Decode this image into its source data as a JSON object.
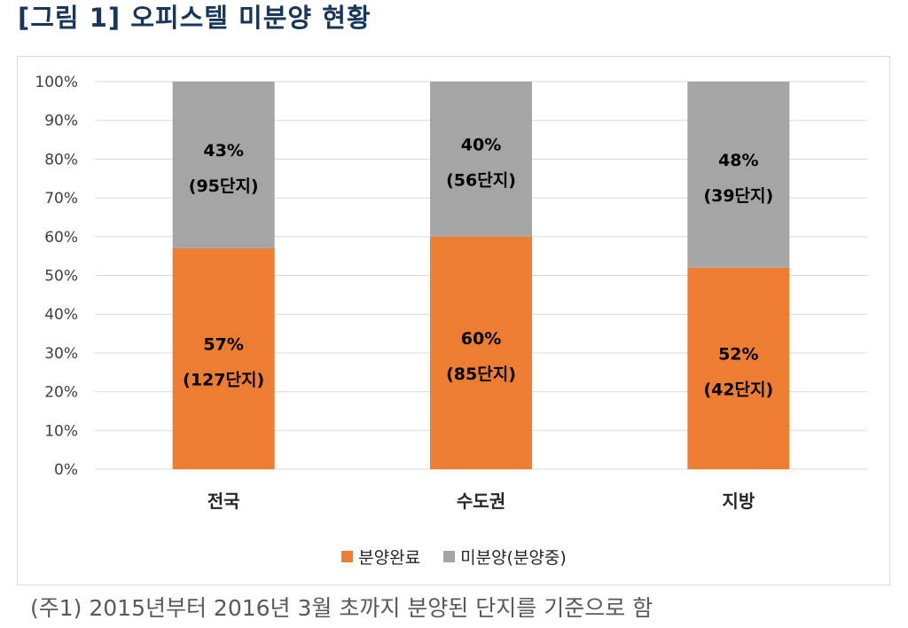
{
  "figure": {
    "title": "[그림 1] 오피스텔 미분양 현황",
    "note": "(주1) 2015년부터 2016년 3월 초까지 분양된 단지를 기준으로 함"
  },
  "chart_data": {
    "type": "bar",
    "stacked": true,
    "categories": [
      "전국",
      "수도권",
      "지방"
    ],
    "series": [
      {
        "name": "분양완료",
        "color": "#ed7d31",
        "values": [
          57,
          60,
          52
        ],
        "labels": [
          [
            "57%",
            "(127단지)"
          ],
          [
            "60%",
            "(85단지)"
          ],
          [
            "52%",
            "(42단지)"
          ]
        ]
      },
      {
        "name": "미분양(분양중)",
        "color": "#a5a5a5",
        "values": [
          43,
          40,
          48
        ],
        "labels": [
          [
            "43%",
            "(95단지)"
          ],
          [
            "40%",
            "(56단지)"
          ],
          [
            "48%",
            "(39단지)"
          ]
        ]
      }
    ],
    "ylim": [
      0,
      100
    ],
    "yticks": [
      "0%",
      "10%",
      "20%",
      "30%",
      "40%",
      "50%",
      "60%",
      "70%",
      "80%",
      "90%",
      "100%"
    ],
    "grid": true,
    "legend": "bottom"
  }
}
